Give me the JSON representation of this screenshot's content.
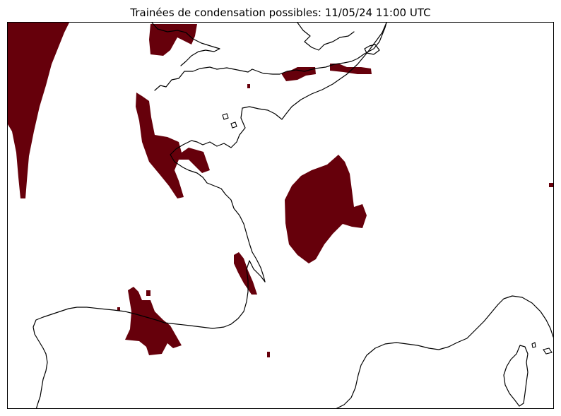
{
  "title": "Trainées de condensation possibles: 11/05/24 11:00 UTC",
  "contrail_color": "#66000b",
  "coastline_color": "#000000"
}
